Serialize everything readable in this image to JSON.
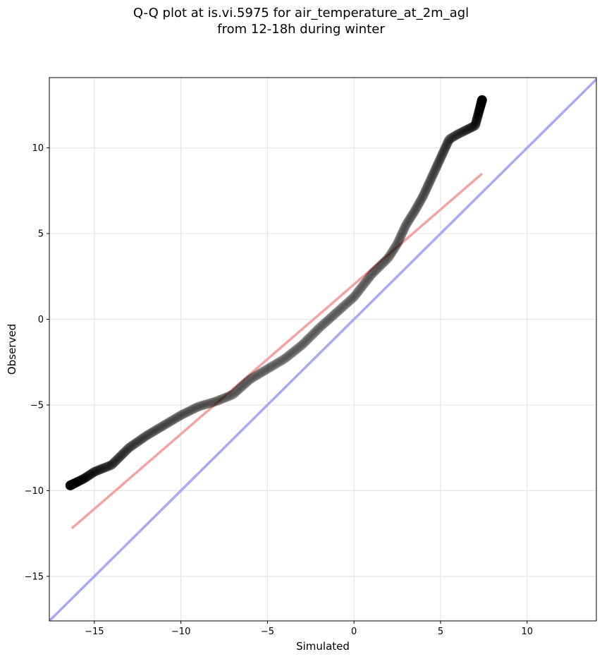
{
  "chart_data": {
    "type": "scatter",
    "title": "Q-Q plot at is.vi.5975 for air_temperature_at_2m_agl",
    "subtitle": "from 12-18h during winter",
    "xlabel": "Simulated",
    "ylabel": "Observed",
    "xlim": [
      -17.6,
      14.0
    ],
    "ylim": [
      -17.6,
      14.1
    ],
    "xticks": [
      -15,
      -10,
      -5,
      0,
      5,
      10
    ],
    "yticks": [
      -15,
      -10,
      -5,
      0,
      5,
      10
    ],
    "xtick_labels": [
      "−15",
      "−10",
      "−5",
      "0",
      "5",
      "10"
    ],
    "ytick_labels": [
      "−15",
      "−10",
      "−5",
      "0",
      "5",
      "10"
    ],
    "grid": true,
    "quantile_curve": [
      [
        -16.4,
        -9.7
      ],
      [
        -15.6,
        -9.3
      ],
      [
        -15.0,
        -8.9
      ],
      [
        -14.0,
        -8.5
      ],
      [
        -13.0,
        -7.5
      ],
      [
        -12.0,
        -6.8
      ],
      [
        -11.0,
        -6.2
      ],
      [
        -10.0,
        -5.6
      ],
      [
        -9.0,
        -5.1
      ],
      [
        -8.0,
        -4.8
      ],
      [
        -7.0,
        -4.4
      ],
      [
        -6.0,
        -3.5
      ],
      [
        -5.0,
        -2.9
      ],
      [
        -4.0,
        -2.3
      ],
      [
        -3.0,
        -1.5
      ],
      [
        -2.0,
        -0.5
      ],
      [
        -1.0,
        0.4
      ],
      [
        0.0,
        1.3
      ],
      [
        1.0,
        2.6
      ],
      [
        2.0,
        3.6
      ],
      [
        2.5,
        4.4
      ],
      [
        3.0,
        5.5
      ],
      [
        3.5,
        6.3
      ],
      [
        4.0,
        7.2
      ],
      [
        4.5,
        8.3
      ],
      [
        5.0,
        9.4
      ],
      [
        5.5,
        10.5
      ],
      [
        6.0,
        10.8
      ],
      [
        7.0,
        11.3
      ],
      [
        7.4,
        12.8
      ]
    ],
    "fit_line": {
      "x": [
        -16.3,
        7.4
      ],
      "y": [
        -12.2,
        8.5
      ],
      "color": "#f4a3a3"
    },
    "identity_line": {
      "color": "#a9a9f5"
    },
    "point_color": "#000000"
  }
}
